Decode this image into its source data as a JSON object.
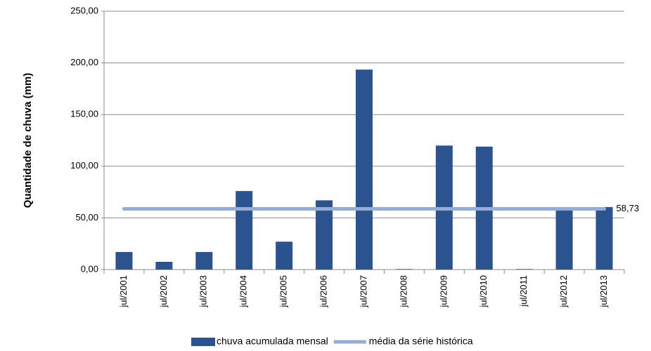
{
  "chart_data": {
    "type": "bar",
    "y_label": "Quantidade de chuva (mm)",
    "categories": [
      "jul/2001",
      "jul/2002",
      "jul/2003",
      "jul/2004",
      "jul/2005",
      "jul/2006",
      "jul/2007",
      "jul/2008",
      "jul/2009",
      "jul/2010",
      "jul/2011",
      "jul/2012",
      "jul/2013"
    ],
    "series": [
      {
        "name": "chuva acumulada mensal",
        "type": "bar",
        "color": "#2b5390",
        "values": [
          17,
          7.5,
          17,
          76,
          27,
          67,
          193.5,
          0.5,
          120,
          119,
          0.5,
          59,
          60.5
        ]
      },
      {
        "name": "média da série histórica",
        "type": "line",
        "color": "#95acd6",
        "values": [
          58.73,
          58.73,
          58.73,
          58.73,
          58.73,
          58.73,
          58.73,
          58.73,
          58.73,
          58.73,
          58.73,
          58.73,
          58.73
        ],
        "value_labels": [
          null,
          null,
          null,
          null,
          null,
          null,
          null,
          null,
          null,
          null,
          null,
          null,
          "58,73"
        ]
      }
    ],
    "ylim": [
      0,
      250
    ],
    "yticks": [
      {
        "value": 0,
        "label": "0,00"
      },
      {
        "value": 50,
        "label": "50,00"
      },
      {
        "value": 100,
        "label": "100,00"
      },
      {
        "value": 150,
        "label": "150,00"
      },
      {
        "value": 200,
        "label": "200,00"
      },
      {
        "value": 250,
        "label": "250,00"
      }
    ],
    "grid": true,
    "legend": "bottom"
  }
}
